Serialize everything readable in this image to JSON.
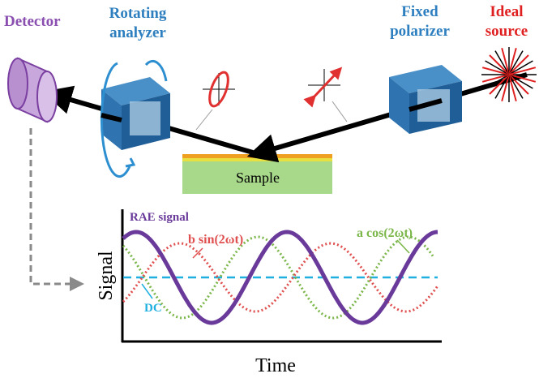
{
  "labels": {
    "detector": "Detector",
    "analyzer": [
      "Rotating",
      "analyzer"
    ],
    "polarizer": [
      "Fixed",
      "polarizer"
    ],
    "source": [
      "Ideal",
      "source"
    ],
    "sample": "Sample"
  },
  "plot": {
    "rae": "RAE signal",
    "sin": "b sin(2ωt)",
    "cos": "a cos(2ωt)",
    "dc": "DC",
    "y_label": "Signal",
    "x_label": "Time"
  }
}
